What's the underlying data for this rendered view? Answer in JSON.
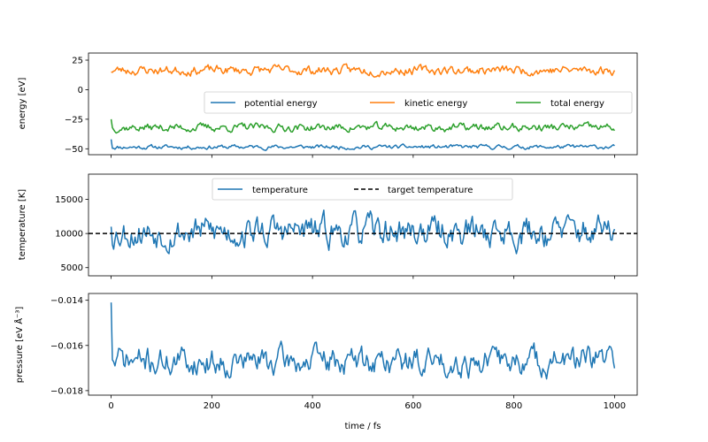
{
  "chart_data": [
    {
      "type": "line",
      "panel": "energy",
      "ylabel": "energy [eV]",
      "xlabel": "",
      "xlim": [
        -45,
        1045
      ],
      "ylim": [
        -55,
        31
      ],
      "yticks": [
        25,
        0,
        -25,
        -50
      ],
      "ytick_labels": [
        "25",
        "0",
        "−25",
        "−50"
      ],
      "legend_loc": "right",
      "series": [
        {
          "name": "potential energy",
          "color": "#1f77b4",
          "mean": -48.5,
          "amp": 1.6,
          "seed": 11,
          "start": -42
        },
        {
          "name": "kinetic energy",
          "color": "#ff7f0e",
          "mean": 16.5,
          "amp": 3.5,
          "seed": 23,
          "start": 15
        },
        {
          "name": "total energy",
          "color": "#2ca02c",
          "mean": -32,
          "amp": 3.0,
          "seed": 37,
          "start": -25
        }
      ]
    },
    {
      "type": "line",
      "panel": "temperature",
      "ylabel": "temperature [K]",
      "xlabel": "",
      "xlim": [
        -45,
        1045
      ],
      "ylim": [
        3800,
        18700
      ],
      "yticks": [
        15000,
        10000,
        5000
      ],
      "ytick_labels": [
        "15000",
        "10000",
        "5000"
      ],
      "legend_loc": "top",
      "series": [
        {
          "name": "temperature",
          "color": "#1f77b4",
          "mean": 10300,
          "amp": 2000,
          "seed": 53,
          "start": 11000
        }
      ],
      "hline": {
        "name": "target temperature",
        "value": 10000,
        "color": "#000000",
        "style": "dashed"
      }
    },
    {
      "type": "line",
      "panel": "pressure",
      "ylabel": "pressure [eV Å⁻³]",
      "xlabel": "time / fs",
      "xlim": [
        -45,
        1045
      ],
      "ylim": [
        -0.0182,
        -0.0137
      ],
      "yticks": [
        -0.014,
        -0.016,
        -0.018
      ],
      "ytick_labels": [
        "−0.014",
        "−0.016",
        "−0.018"
      ],
      "xticks": [
        0,
        200,
        400,
        600,
        800,
        1000
      ],
      "xtick_labels": [
        "0",
        "200",
        "400",
        "600",
        "800",
        "1000"
      ],
      "series": [
        {
          "name": "pressure",
          "color": "#1f77b4",
          "mean": -0.0167,
          "amp": 0.00055,
          "seed": 71,
          "start": -0.0141
        }
      ]
    }
  ]
}
